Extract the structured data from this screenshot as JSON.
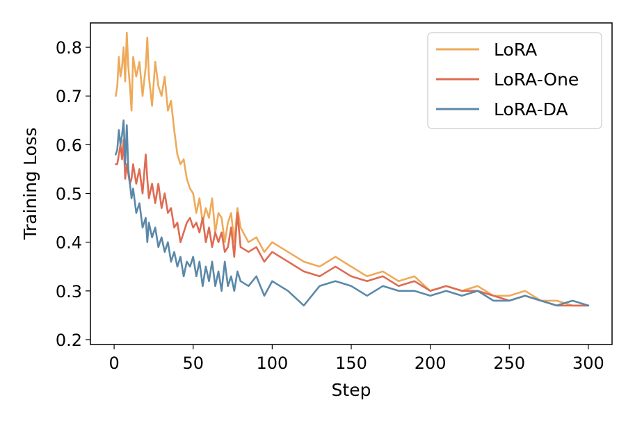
{
  "chart_data": {
    "type": "line",
    "title": "",
    "xlabel": "Step",
    "ylabel": "Training Loss",
    "xlim": [
      -15,
      315
    ],
    "ylim": [
      0.19,
      0.85
    ],
    "xticks": [
      0,
      50,
      100,
      150,
      200,
      250,
      300
    ],
    "yticks": [
      0.2,
      0.3,
      0.4,
      0.5,
      0.6,
      0.7,
      0.8
    ],
    "xtick_labels": [
      "0",
      "50",
      "100",
      "150",
      "200",
      "250",
      "300"
    ],
    "ytick_labels": [
      "0.2",
      "0.3",
      "0.4",
      "0.5",
      "0.6",
      "0.7",
      "0.8"
    ],
    "grid": false,
    "legend_position": "top-right",
    "series": [
      {
        "name": "LoRA",
        "color": "#eeaa5a",
        "x": [
          1,
          2,
          3,
          4,
          5,
          6,
          7,
          8,
          9,
          10,
          11,
          12,
          14,
          16,
          18,
          20,
          21,
          22,
          24,
          26,
          28,
          30,
          32,
          34,
          36,
          38,
          40,
          42,
          44,
          46,
          48,
          50,
          52,
          54,
          56,
          58,
          60,
          62,
          64,
          66,
          68,
          70,
          72,
          74,
          76,
          78,
          80,
          85,
          90,
          95,
          100,
          110,
          120,
          130,
          140,
          150,
          160,
          170,
          180,
          190,
          200,
          210,
          220,
          230,
          240,
          250,
          260,
          270,
          280,
          290,
          300
        ],
        "values": [
          0.7,
          0.72,
          0.78,
          0.74,
          0.76,
          0.8,
          0.73,
          0.83,
          0.76,
          0.72,
          0.67,
          0.78,
          0.74,
          0.77,
          0.7,
          0.76,
          0.82,
          0.74,
          0.68,
          0.77,
          0.72,
          0.7,
          0.74,
          0.67,
          0.69,
          0.63,
          0.58,
          0.56,
          0.57,
          0.53,
          0.51,
          0.5,
          0.46,
          0.49,
          0.44,
          0.47,
          0.45,
          0.49,
          0.42,
          0.46,
          0.45,
          0.4,
          0.44,
          0.46,
          0.4,
          0.47,
          0.43,
          0.4,
          0.41,
          0.38,
          0.4,
          0.38,
          0.36,
          0.35,
          0.37,
          0.35,
          0.33,
          0.34,
          0.32,
          0.33,
          0.3,
          0.31,
          0.3,
          0.31,
          0.29,
          0.29,
          0.3,
          0.28,
          0.28,
          0.27,
          0.27
        ]
      },
      {
        "name": "LoRA-One",
        "color": "#de6b52",
        "x": [
          1,
          2,
          3,
          4,
          5,
          6,
          7,
          8,
          9,
          10,
          11,
          12,
          14,
          16,
          18,
          20,
          21,
          22,
          24,
          26,
          28,
          30,
          32,
          34,
          36,
          38,
          40,
          42,
          44,
          46,
          48,
          50,
          52,
          54,
          56,
          58,
          60,
          62,
          64,
          66,
          68,
          70,
          72,
          74,
          76,
          78,
          80,
          85,
          90,
          95,
          100,
          110,
          120,
          130,
          140,
          150,
          160,
          170,
          180,
          190,
          200,
          210,
          220,
          230,
          240,
          250,
          260,
          270,
          280,
          290,
          300
        ],
        "values": [
          0.56,
          0.56,
          0.58,
          0.6,
          0.57,
          0.61,
          0.53,
          0.56,
          0.54,
          0.52,
          0.53,
          0.56,
          0.52,
          0.55,
          0.5,
          0.58,
          0.53,
          0.49,
          0.52,
          0.48,
          0.52,
          0.47,
          0.5,
          0.46,
          0.47,
          0.43,
          0.44,
          0.4,
          0.42,
          0.44,
          0.45,
          0.43,
          0.44,
          0.42,
          0.45,
          0.4,
          0.43,
          0.39,
          0.42,
          0.4,
          0.42,
          0.38,
          0.39,
          0.43,
          0.37,
          0.46,
          0.39,
          0.38,
          0.39,
          0.36,
          0.38,
          0.36,
          0.34,
          0.33,
          0.35,
          0.33,
          0.32,
          0.33,
          0.31,
          0.32,
          0.3,
          0.31,
          0.3,
          0.3,
          0.29,
          0.28,
          0.29,
          0.28,
          0.27,
          0.27,
          0.27
        ]
      },
      {
        "name": "LoRA-DA",
        "color": "#5b88a8",
        "x": [
          1,
          2,
          3,
          4,
          5,
          6,
          7,
          8,
          9,
          10,
          11,
          12,
          14,
          16,
          18,
          20,
          21,
          22,
          24,
          26,
          28,
          30,
          32,
          34,
          36,
          38,
          40,
          42,
          44,
          46,
          48,
          50,
          52,
          54,
          56,
          58,
          60,
          62,
          64,
          66,
          68,
          70,
          72,
          74,
          76,
          78,
          80,
          85,
          90,
          95,
          100,
          110,
          120,
          130,
          140,
          150,
          160,
          170,
          180,
          190,
          200,
          210,
          220,
          230,
          240,
          250,
          260,
          270,
          280,
          290,
          300
        ],
        "values": [
          0.58,
          0.59,
          0.63,
          0.6,
          0.62,
          0.65,
          0.56,
          0.64,
          0.55,
          0.52,
          0.49,
          0.51,
          0.46,
          0.48,
          0.43,
          0.45,
          0.4,
          0.44,
          0.41,
          0.43,
          0.39,
          0.41,
          0.38,
          0.4,
          0.36,
          0.38,
          0.35,
          0.37,
          0.33,
          0.36,
          0.35,
          0.37,
          0.33,
          0.36,
          0.31,
          0.35,
          0.32,
          0.36,
          0.31,
          0.34,
          0.3,
          0.36,
          0.31,
          0.33,
          0.3,
          0.34,
          0.32,
          0.31,
          0.33,
          0.29,
          0.32,
          0.3,
          0.27,
          0.31,
          0.32,
          0.31,
          0.29,
          0.31,
          0.3,
          0.3,
          0.29,
          0.3,
          0.29,
          0.3,
          0.28,
          0.28,
          0.29,
          0.28,
          0.27,
          0.28,
          0.27
        ]
      }
    ]
  }
}
